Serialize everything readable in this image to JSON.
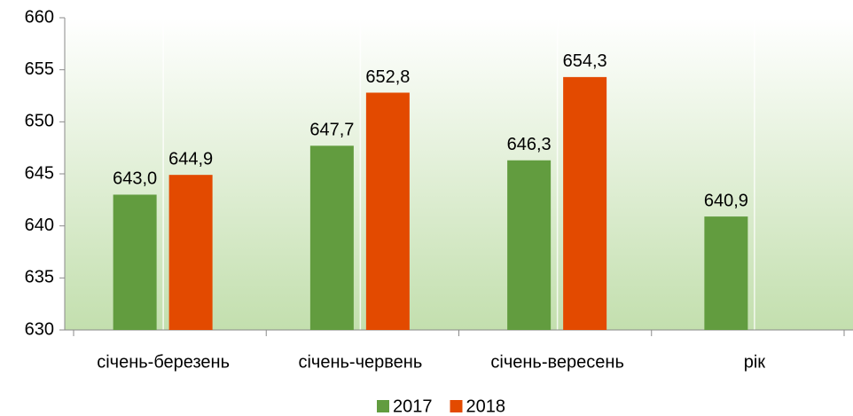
{
  "chart_data": {
    "type": "bar",
    "categories": [
      "січень-березень",
      "січень-червень",
      "січень-вересень",
      "рік"
    ],
    "series": [
      {
        "name": "2017",
        "color": "#629c3f",
        "values": [
          643.0,
          647.7,
          646.3,
          640.9
        ],
        "value_labels": [
          "643,0",
          "647,7",
          "646,3",
          "640,9"
        ]
      },
      {
        "name": "2018",
        "color": "#e34a00",
        "values": [
          644.9,
          652.8,
          654.3,
          null
        ],
        "value_labels": [
          "644,9",
          "652,8",
          "654,3",
          null
        ]
      }
    ],
    "ylim": [
      630,
      660
    ],
    "yticks": [
      630,
      635,
      640,
      645,
      650,
      655,
      660
    ],
    "legend": "bottom"
  }
}
